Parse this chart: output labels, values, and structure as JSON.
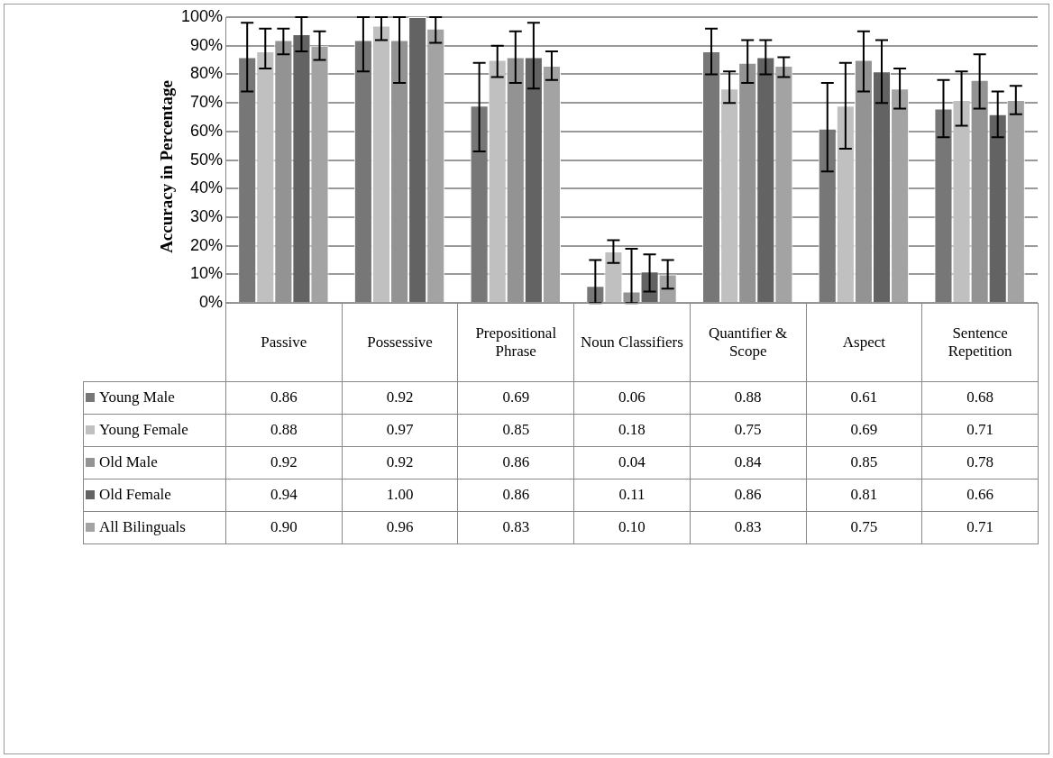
{
  "chart_data": {
    "type": "bar",
    "ylabel": "Accuracy in Percentage",
    "categories": [
      "Passive",
      "Possessive",
      "Prepositional Phrase",
      "Noun Classifiers",
      "Quantifier & Scope",
      "Aspect",
      "Sentence Repetition"
    ],
    "ylim": [
      0,
      1
    ],
    "yticks": [
      {
        "value": 0,
        "label": "0%"
      },
      {
        "value": 0.1,
        "label": "10%"
      },
      {
        "value": 0.2,
        "label": "20%"
      },
      {
        "value": 0.3,
        "label": "30%"
      },
      {
        "value": 0.4,
        "label": "40%"
      },
      {
        "value": 0.5,
        "label": "50%"
      },
      {
        "value": 0.6,
        "label": "60%"
      },
      {
        "value": 0.7,
        "label": "70%"
      },
      {
        "value": 0.8,
        "label": "80%"
      },
      {
        "value": 0.9,
        "label": "90%"
      },
      {
        "value": 1,
        "label": "100%"
      }
    ],
    "grid": "y",
    "legend": "bottom",
    "series": [
      {
        "name": "Young Male",
        "color": "#777777",
        "values": [
          0.86,
          0.92,
          0.69,
          0.06,
          0.88,
          0.61,
          0.68
        ],
        "value_labels": [
          "0.86",
          "0.92",
          "0.69",
          "0.06",
          "0.88",
          "0.61",
          "0.68"
        ],
        "errors": [
          [
            0.74,
            0.98
          ],
          [
            0.81,
            1
          ],
          [
            0.53,
            0.84
          ],
          [
            0,
            0.15
          ],
          [
            0.8,
            0.96
          ],
          [
            0.46,
            0.77
          ],
          [
            0.58,
            0.78
          ]
        ]
      },
      {
        "name": "Young Female",
        "color": "#c0c0c0",
        "values": [
          0.88,
          0.97,
          0.85,
          0.18,
          0.75,
          0.69,
          0.71
        ],
        "value_labels": [
          "0.88",
          "0.97",
          "0.85",
          "0.18",
          "0.75",
          "0.69",
          "0.71"
        ],
        "errors": [
          [
            0.82,
            0.96
          ],
          [
            0.92,
            1
          ],
          [
            0.79,
            0.9
          ],
          [
            0.14,
            0.22
          ],
          [
            0.7,
            0.81
          ],
          [
            0.54,
            0.84
          ],
          [
            0.62,
            0.81
          ]
        ]
      },
      {
        "name": "Old Male",
        "color": "#939393",
        "values": [
          0.92,
          0.92,
          0.86,
          0.04,
          0.84,
          0.85,
          0.78
        ],
        "value_labels": [
          "0.92",
          "0.92",
          "0.86",
          "0.04",
          "0.84",
          "0.85",
          "0.78"
        ],
        "errors": [
          [
            0.87,
            0.96
          ],
          [
            0.77,
            1
          ],
          [
            0.77,
            0.95
          ],
          [
            0,
            0.19
          ],
          [
            0.77,
            0.92
          ],
          [
            0.74,
            0.95
          ],
          [
            0.68,
            0.87
          ]
        ]
      },
      {
        "name": "Old Female",
        "color": "#636363",
        "values": [
          0.94,
          1,
          0.86,
          0.11,
          0.86,
          0.81,
          0.66
        ],
        "value_labels": [
          "0.94",
          "1.00",
          "0.86",
          "0.11",
          "0.86",
          "0.81",
          "0.66"
        ],
        "errors": [
          [
            0.88,
            1
          ],
          null,
          [
            0.75,
            0.98
          ],
          [
            0.04,
            0.17
          ],
          [
            0.8,
            0.92
          ],
          [
            0.7,
            0.92
          ],
          [
            0.58,
            0.74
          ]
        ]
      },
      {
        "name": "All Bilinguals",
        "color": "#a3a3a3",
        "values": [
          0.9,
          0.96,
          0.83,
          0.1,
          0.83,
          0.75,
          0.71
        ],
        "value_labels": [
          "0.90",
          "0.96",
          "0.83",
          "0.10",
          "0.83",
          "0.75",
          "0.71"
        ],
        "errors": [
          [
            0.85,
            0.95
          ],
          [
            0.91,
            1
          ],
          [
            0.78,
            0.88
          ],
          [
            0.05,
            0.15
          ],
          [
            0.79,
            0.86
          ],
          [
            0.68,
            0.82
          ],
          [
            0.66,
            0.76
          ]
        ]
      }
    ]
  }
}
